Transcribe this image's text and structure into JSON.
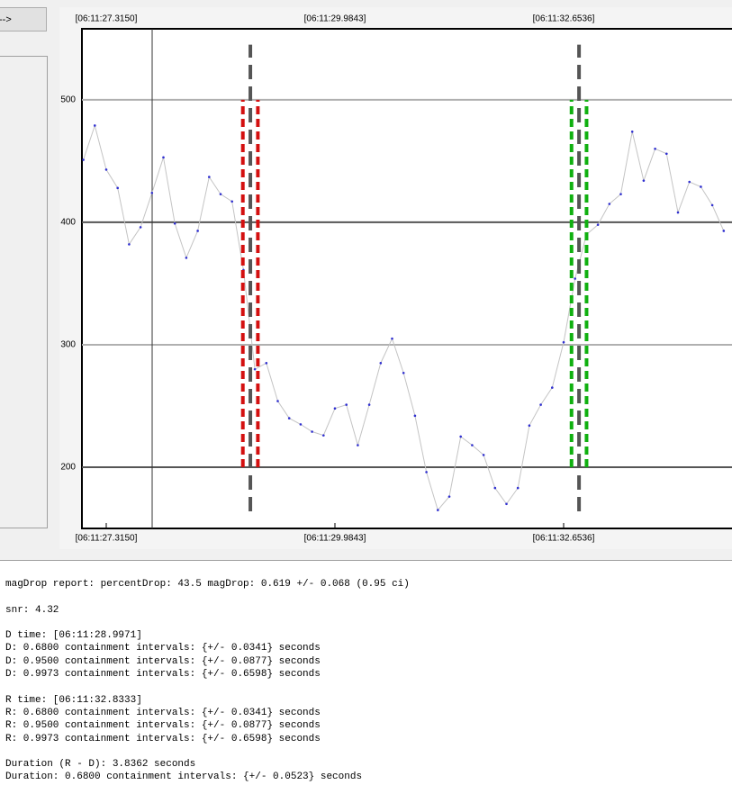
{
  "button_label": "-->",
  "chart_data": {
    "type": "line",
    "x": [
      27.0481,
      27.1815,
      27.315,
      27.4485,
      27.5819,
      27.7154,
      27.8489,
      27.9824,
      28.1158,
      28.2493,
      28.3828,
      28.5162,
      28.6497,
      28.7832,
      28.9166,
      29.0501,
      29.1836,
      29.317,
      29.4505,
      29.584,
      29.7174,
      29.8509,
      29.9843,
      30.1178,
      30.2512,
      30.3847,
      30.5182,
      30.6516,
      30.7851,
      30.9186,
      31.052,
      31.1855,
      31.319,
      31.4524,
      31.5859,
      31.7194,
      31.8528,
      31.9863,
      32.1197,
      32.2532,
      32.3867,
      32.5201,
      32.6536,
      32.7871,
      32.9205,
      33.054,
      33.1875,
      33.3209,
      33.4544,
      33.5879,
      33.7213,
      33.8548,
      33.9883,
      34.1217,
      34.2552,
      34.3886,
      34.5221
    ],
    "values": [
      451,
      479,
      443,
      428,
      382,
      396,
      424,
      453,
      399,
      371,
      393,
      437,
      423,
      417,
      361,
      280,
      285,
      254,
      240,
      235,
      229,
      226,
      248,
      251,
      218,
      251,
      285,
      305,
      277,
      242,
      196,
      165,
      176,
      225,
      218,
      210,
      183,
      170,
      183,
      234,
      251,
      265,
      302,
      354,
      390,
      398,
      415,
      423,
      474,
      434,
      460,
      456,
      408,
      433,
      429,
      414,
      393
    ],
    "color": "#c4c4c4",
    "point_color": "#3030d0",
    "xlim": [
      27.0313,
      34.6187
    ],
    "xticks": [
      {
        "value": 27.315,
        "label": "[06:11:27.3150]"
      },
      {
        "value": 29.9843,
        "label": "[06:11:29.9843]"
      },
      {
        "value": 32.6536,
        "label": "[06:11:32.6536]"
      }
    ],
    "ylim": [
      150,
      558
    ],
    "yticks": [
      200,
      300,
      400,
      500
    ],
    "grid": true,
    "grid_colors": [
      "#555555",
      "#b0b0b0",
      "#555555",
      "#b0b0b0"
    ],
    "cursor_x": 27.851,
    "markers": [
      {
        "x": 28.9971,
        "ci": 0.0877,
        "color": "#d41010",
        "band": [
          200,
          500
        ],
        "extent": [
          164,
          545
        ]
      },
      {
        "x": 32.8333,
        "ci": 0.0877,
        "color": "#10b010",
        "band": [
          200,
          500
        ],
        "extent": [
          164,
          545
        ]
      }
    ]
  },
  "report": {
    "paragraphs": [
      [
        "magDrop report: percentDrop: 43.5 magDrop: 0.619 +/- 0.068 (0.95 ci)"
      ],
      [
        "snr: 4.32"
      ],
      [
        "D time: [06:11:28.9971]",
        "D: 0.6800 containment intervals: {+/- 0.0341} seconds",
        "D: 0.9500 containment intervals: {+/- 0.0877} seconds",
        "D: 0.9973 containment intervals: {+/- 0.6598} seconds"
      ],
      [
        "R time: [06:11:32.8333]",
        "R: 0.6800 containment intervals: {+/- 0.0341} seconds",
        "R: 0.9500 containment intervals: {+/- 0.0877} seconds",
        "R: 0.9973 containment intervals: {+/- 0.6598} seconds"
      ],
      [
        "Duration (R - D): 3.8362 seconds",
        "Duration: 0.6800 containment intervals: {+/- 0.0523} seconds"
      ]
    ]
  }
}
